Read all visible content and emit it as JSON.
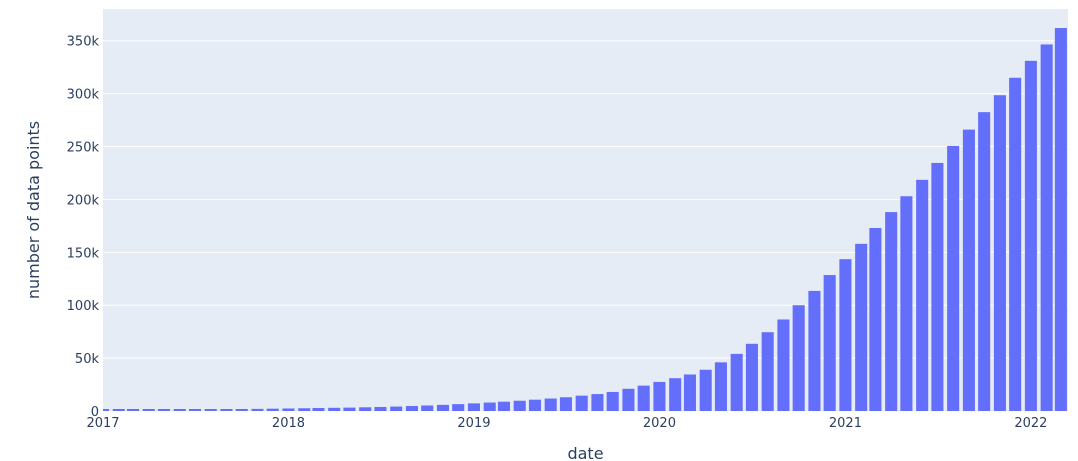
{
  "chart_data": {
    "type": "bar",
    "xlabel": "date",
    "ylabel": "number of data points",
    "grid": true,
    "legend": "none",
    "ylim": [
      0,
      380000
    ],
    "xlim": [
      "2017-01-01",
      "2022-03-15"
    ],
    "x_ticks": [
      {
        "date": "2017-01-01",
        "label": "2017"
      },
      {
        "date": "2018-01-01",
        "label": "2018"
      },
      {
        "date": "2019-01-01",
        "label": "2019"
      },
      {
        "date": "2020-01-01",
        "label": "2020"
      },
      {
        "date": "2021-01-01",
        "label": "2021"
      },
      {
        "date": "2022-01-01",
        "label": "2022"
      }
    ],
    "y_ticks": [
      {
        "value": 0,
        "label": "0"
      },
      {
        "value": 50000,
        "label": "50k"
      },
      {
        "value": 100000,
        "label": "100k"
      },
      {
        "value": 150000,
        "label": "150k"
      },
      {
        "value": 200000,
        "label": "200k"
      },
      {
        "value": 250000,
        "label": "250k"
      },
      {
        "value": 300000,
        "label": "300k"
      },
      {
        "value": 350000,
        "label": "350k"
      }
    ],
    "x": [
      "2017-01-01",
      "2017-02-01",
      "2017-03-01",
      "2017-04-01",
      "2017-05-01",
      "2017-06-01",
      "2017-07-01",
      "2017-08-01",
      "2017-09-01",
      "2017-10-01",
      "2017-11-01",
      "2017-12-01",
      "2018-01-01",
      "2018-02-01",
      "2018-03-01",
      "2018-04-01",
      "2018-05-01",
      "2018-06-01",
      "2018-07-01",
      "2018-08-01",
      "2018-09-01",
      "2018-10-01",
      "2018-11-01",
      "2018-12-01",
      "2019-01-01",
      "2019-02-01",
      "2019-03-01",
      "2019-04-01",
      "2019-05-01",
      "2019-06-01",
      "2019-07-01",
      "2019-08-01",
      "2019-09-01",
      "2019-10-01",
      "2019-11-01",
      "2019-12-01",
      "2020-01-01",
      "2020-02-01",
      "2020-03-01",
      "2020-04-01",
      "2020-05-01",
      "2020-06-01",
      "2020-07-01",
      "2020-08-01",
      "2020-09-01",
      "2020-10-01",
      "2020-11-01",
      "2020-12-01",
      "2021-01-01",
      "2021-02-01",
      "2021-03-01",
      "2021-04-01",
      "2021-05-01",
      "2021-06-01",
      "2021-07-01",
      "2021-08-01",
      "2021-09-01",
      "2021-10-01",
      "2021-11-01",
      "2021-12-01",
      "2022-01-01",
      "2022-02-01",
      "2022-03-01"
    ],
    "values": [
      1000,
      1100,
      1200,
      1300,
      1400,
      1500,
      1600,
      1700,
      1800,
      1900,
      2000,
      2200,
      2400,
      2600,
      2800,
      3000,
      3200,
      3500,
      3800,
      4200,
      4700,
      5200,
      5800,
      6500,
      7200,
      8000,
      8800,
      9700,
      10700,
      11800,
      13000,
      14500,
      16000,
      18000,
      21000,
      24000,
      27500,
      31000,
      34500,
      39000,
      46000,
      54000,
      63500,
      74500,
      86500,
      100000,
      113500,
      128500,
      143500,
      158000,
      173000,
      188000,
      203000,
      218500,
      234500,
      250500,
      266000,
      282500,
      298500,
      315000,
      331000,
      346500,
      362000
    ],
    "bar_color": "#636efa",
    "plot_background": "#e5ecf6",
    "grid_color": "#ffffff"
  }
}
